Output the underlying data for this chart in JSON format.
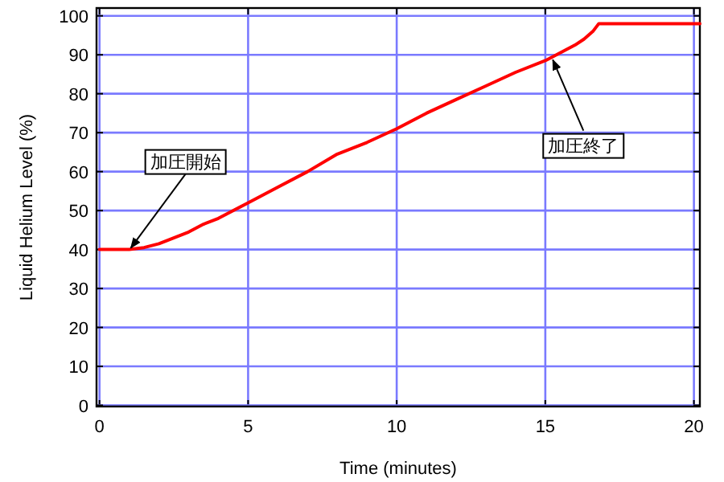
{
  "chart_data": {
    "type": "line",
    "xlabel": "Time (minutes)",
    "ylabel": "Liquid Helium Level (%)",
    "xlim": [
      -0.1,
      20.2
    ],
    "ylim": [
      -0.3,
      102
    ],
    "xticks": [
      0,
      5,
      10,
      15,
      20
    ],
    "yticks": [
      0,
      10,
      20,
      30,
      40,
      50,
      60,
      70,
      80,
      90,
      100
    ],
    "grid": true,
    "series": [
      {
        "color": "#ff0000",
        "x": [
          0,
          1,
          1.5,
          2,
          2.5,
          3,
          3.5,
          4,
          5,
          6,
          7,
          8,
          9,
          10,
          11,
          12,
          13,
          14,
          15,
          15.5,
          16,
          16.3,
          16.6,
          16.8,
          17,
          18,
          19,
          20.2
        ],
        "values": [
          40,
          40,
          40.5,
          41.5,
          43,
          44.5,
          46.5,
          48,
          52,
          56,
          60,
          64.5,
          67.5,
          71,
          75,
          78.5,
          82,
          85.5,
          88.5,
          90.5,
          92.5,
          94,
          96,
          98,
          98,
          98,
          98,
          98
        ]
      }
    ],
    "annotations": [
      {
        "text": "加圧開始",
        "x": 1,
        "y": 40
      },
      {
        "text": "加圧終了",
        "x": 15.2,
        "y": 89.5
      }
    ]
  }
}
